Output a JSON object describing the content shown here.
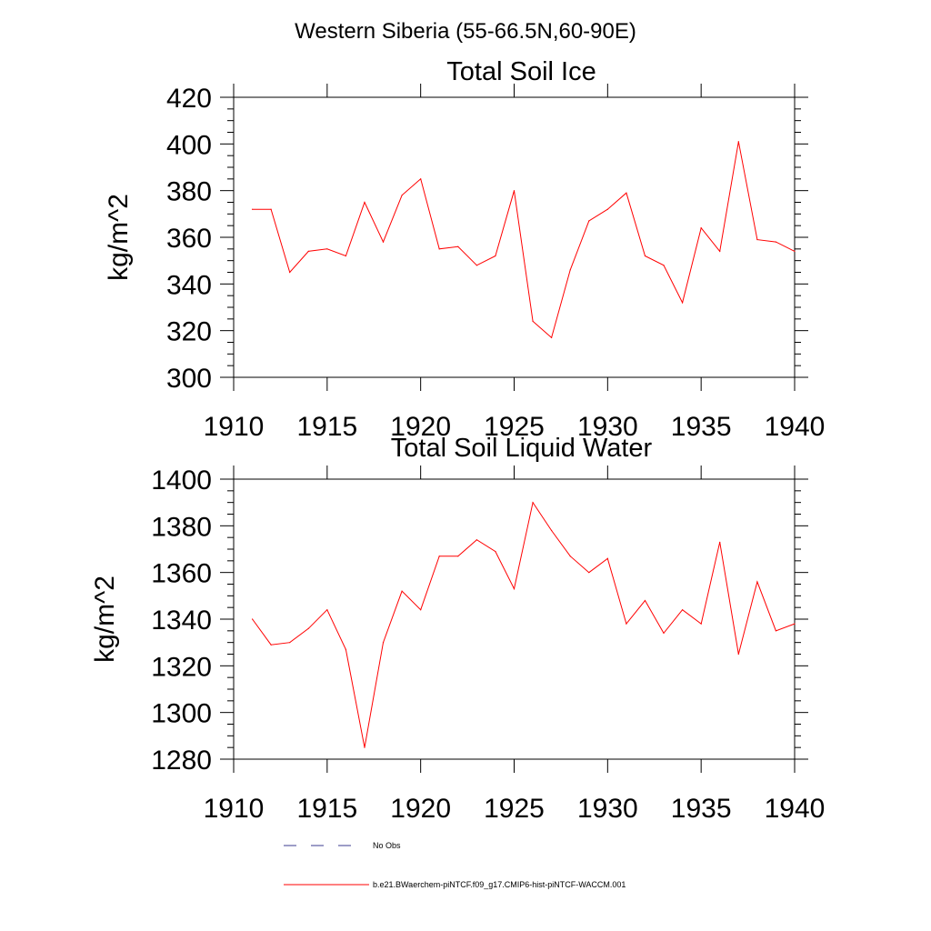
{
  "figure": {
    "title": "Western Siberia (55-66.5N,60-90E)"
  },
  "legend": {
    "items": [
      {
        "label": "No Obs",
        "color": "#3b3b8f",
        "style": "dashed"
      },
      {
        "label": "b.e21.BWaerchem-piNTCF.f09_g17.CMIP6-hist-piNTCF-WACCM.001",
        "color": "#ff0000",
        "style": "solid"
      }
    ]
  },
  "chart_data": [
    {
      "type": "line",
      "title": "Total Soil Ice",
      "ylabel": "kg/m^2",
      "xlabel": "",
      "xlim": [
        1910,
        1940
      ],
      "ylim": [
        300,
        420
      ],
      "xticks": [
        1910,
        1915,
        1920,
        1925,
        1930,
        1935,
        1940
      ],
      "yticks": [
        300,
        320,
        340,
        360,
        380,
        400,
        420
      ],
      "grid": false,
      "series": [
        {
          "color": "#ff0000",
          "x": [
            1911,
            1912,
            1913,
            1914,
            1915,
            1916,
            1917,
            1918,
            1919,
            1920,
            1921,
            1922,
            1923,
            1924,
            1925,
            1926,
            1927,
            1928,
            1929,
            1930,
            1931,
            1932,
            1933,
            1934,
            1935,
            1936,
            1937,
            1938,
            1939,
            1940
          ],
          "values": [
            372,
            372,
            345,
            354,
            355,
            352,
            375,
            358,
            378,
            385,
            355,
            356,
            348,
            352,
            380,
            324,
            317,
            346,
            367,
            372,
            379,
            352,
            348,
            332,
            364,
            354,
            401,
            359,
            358,
            354
          ]
        }
      ]
    },
    {
      "type": "line",
      "title": "Total Soil Liquid Water",
      "ylabel": "kg/m^2",
      "xlabel": "",
      "xlim": [
        1910,
        1940
      ],
      "ylim": [
        1280,
        1400
      ],
      "xticks": [
        1910,
        1915,
        1920,
        1925,
        1930,
        1935,
        1940
      ],
      "yticks": [
        1280,
        1300,
        1320,
        1340,
        1360,
        1380,
        1400
      ],
      "grid": false,
      "series": [
        {
          "color": "#ff0000",
          "x": [
            1911,
            1912,
            1913,
            1914,
            1915,
            1916,
            1917,
            1918,
            1919,
            1920,
            1921,
            1922,
            1923,
            1924,
            1925,
            1926,
            1927,
            1928,
            1929,
            1930,
            1931,
            1932,
            1933,
            1934,
            1935,
            1936,
            1937,
            1938,
            1939,
            1940
          ],
          "values": [
            1340,
            1329,
            1330,
            1336,
            1344,
            1327,
            1285,
            1330,
            1352,
            1344,
            1367,
            1367,
            1374,
            1369,
            1353,
            1390,
            1378,
            1367,
            1360,
            1366,
            1338,
            1348,
            1334,
            1344,
            1338,
            1373,
            1325,
            1356,
            1335,
            1338
          ]
        }
      ]
    }
  ]
}
